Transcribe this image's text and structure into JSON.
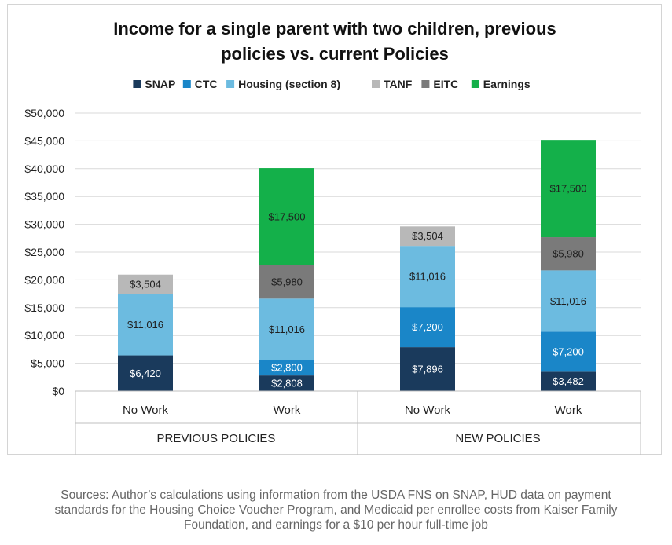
{
  "chart_data": {
    "type": "bar",
    "stacked": true,
    "title_lines": [
      "Income for a single parent with two children, previous",
      "policies vs. current Policies"
    ],
    "categories": [
      "No Work",
      "Work",
      "No Work",
      "Work"
    ],
    "groups": [
      {
        "label": "PREVIOUS POLICIES",
        "categories": [
          0,
          1
        ]
      },
      {
        "label": "NEW POLICIES",
        "categories": [
          2,
          3
        ]
      }
    ],
    "ylim": [
      0,
      50000
    ],
    "y_ticks": [
      0,
      5000,
      10000,
      15000,
      20000,
      25000,
      30000,
      35000,
      40000,
      45000,
      50000
    ],
    "y_tick_labels": [
      "$0",
      "$5,000",
      "$10,000",
      "$15,000",
      "$20,000",
      "$25,000",
      "$30,000",
      "$35,000",
      "$40,000",
      "$45,000",
      "$50,000"
    ],
    "grid": true,
    "legend_position": "top",
    "series": [
      {
        "name": "SNAP",
        "color": "#1a3a5c",
        "label_color": "#ffffff",
        "values": [
          6420,
          2808,
          7896,
          3482
        ],
        "labels": [
          "$6,420",
          "$2,808",
          "$7,896",
          "$3,482"
        ]
      },
      {
        "name": "CTC",
        "color": "#1a86c8",
        "label_color": "#ffffff",
        "values": [
          0,
          2800,
          7200,
          7200
        ],
        "labels": [
          "",
          "$2,800",
          "$7,200",
          "$7,200"
        ]
      },
      {
        "name": "Housing (section 8)",
        "color": "#6cbbe0",
        "label_color": "#1f1f1f",
        "values": [
          11016,
          11016,
          11016,
          11016
        ],
        "labels": [
          "$11,016",
          "$11,016",
          "$11,016",
          "$11,016"
        ]
      },
      {
        "name": "TANF",
        "color": "#b8b8b8",
        "label_color": "#1f1f1f",
        "values": [
          3504,
          0,
          3504,
          0
        ],
        "labels": [
          "$3,504",
          "",
          "$3,504",
          ""
        ]
      },
      {
        "name": "EITC",
        "color": "#7a7a7a",
        "label_color": "#1f1f1f",
        "values": [
          0,
          5980,
          0,
          5980
        ],
        "labels": [
          "",
          "$5,980",
          "",
          "$5,980"
        ]
      },
      {
        "name": "Earnings",
        "color": "#14b04a",
        "label_color": "#1f1f1f",
        "values": [
          0,
          17500,
          0,
          17500
        ],
        "labels": [
          "",
          "$17,500",
          "",
          "$17,500"
        ]
      }
    ]
  },
  "source_note": {
    "lines": [
      "Sources: Author’s calculations using information from the USDA FNS on SNAP, HUD data on payment",
      "standards for the Housing Choice Voucher Program, and Medicaid per enrollee costs from Kaiser Family",
      "Foundation, and earnings for a $10 per hour full-time job"
    ]
  }
}
